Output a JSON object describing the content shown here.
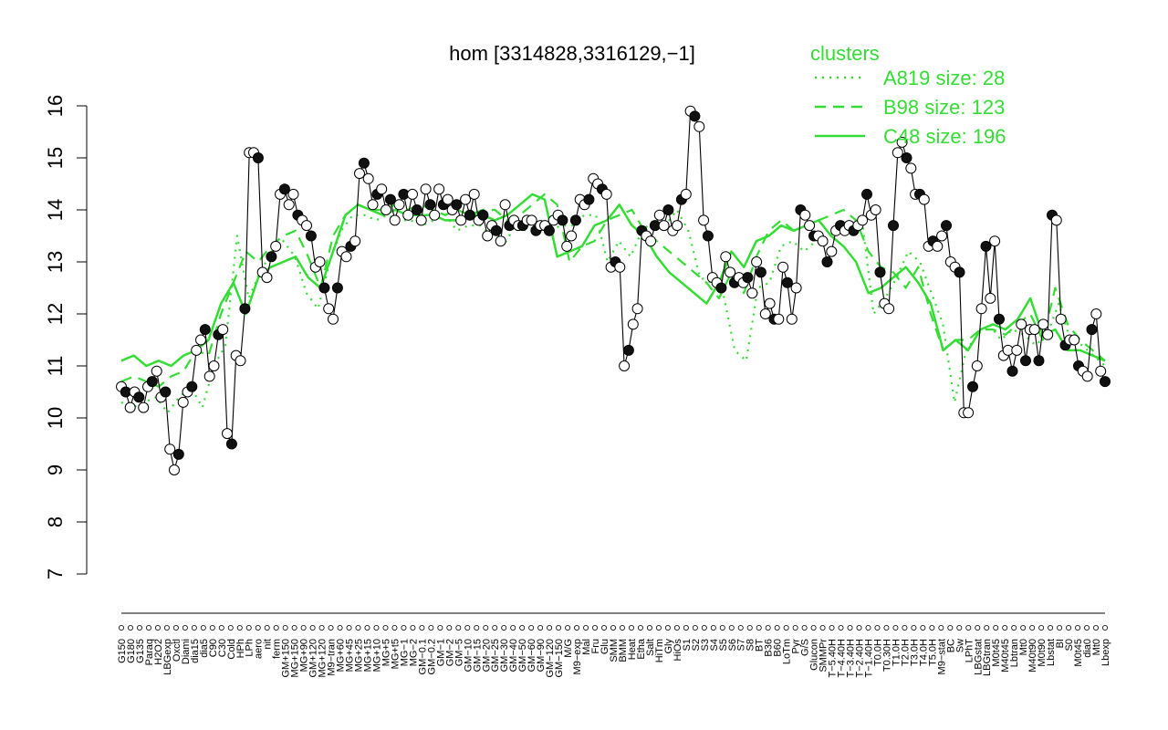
{
  "chart_data": {
    "type": "line",
    "title": "hom [3314828,3316129,−1]",
    "xlabel": "",
    "ylabel": "",
    "ylim": [
      7,
      16
    ],
    "yticks": [
      7,
      8,
      9,
      10,
      11,
      12,
      13,
      14,
      15,
      16
    ],
    "grid": false,
    "x_tick_labels": [
      "G150",
      "G180",
      "G135",
      "Paraq",
      "H2O2",
      "LBGexp",
      "Oxctl",
      "Diami",
      "dia15",
      "dia5",
      "C90",
      "C30",
      "Cold",
      "HPh",
      "LPh",
      "aero",
      "nit",
      "ferm",
      "GM+150",
      "MG+150",
      "MG+90",
      "GM+120",
      "MG+120",
      "M9−tran",
      "MG+60",
      "MG+45",
      "MG+25",
      "MG+15",
      "MG+10",
      "MG+5",
      "MG+t5",
      "MG−1",
      "MG−2",
      "GM−0.1",
      "GM−0.2",
      "GM−1",
      "GM−2",
      "GM−5",
      "GM−10",
      "GM−15",
      "GM−20",
      "GM−25",
      "GM−30",
      "GM−40",
      "GM−50",
      "GM−60",
      "GM−90",
      "GM−120",
      "GM−150",
      "M/G",
      "M9−exp",
      "Mal",
      "Fru",
      "Glu",
      "SMM",
      "BMM",
      "Heat",
      "Etha",
      "Salt",
      "HiTm",
      "Gly",
      "HiOs",
      "S1",
      "S2",
      "S3",
      "S4",
      "S5",
      "S6",
      "S7",
      "S8",
      "BT",
      "B36",
      "B60",
      "LoTm",
      "Pyr",
      "G/S",
      "Glucon",
      "SMMPr",
      "T−5.40H",
      "T−4.40H",
      "T−3.40H",
      "T−2.40H",
      "T−1.40H",
      "T0.0H",
      "T0.30H",
      "T1.0H",
      "T2.0H",
      "T3.0H",
      "T4.0H",
      "T5.0H",
      "M9−stat",
      "BC",
      "Sw",
      "LPhT",
      "LBGstat",
      "LBGtran",
      "M0t45",
      "M40t45",
      "Lbtran",
      "Mt0",
      "M40t90",
      "M0t90",
      "Lbstat",
      "BI",
      "S0",
      "M0t45",
      "dia0",
      "Mt0",
      "Lbexp"
    ],
    "sample_points": [
      10.6,
      10.5,
      10.2,
      10.5,
      10.4,
      10.2,
      10.6,
      10.7,
      10.9,
      10.4,
      10.5,
      9.4,
      9.0,
      9.3,
      10.3,
      10.5,
      10.6,
      11.3,
      11.5,
      11.7,
      10.8,
      11.0,
      11.6,
      11.7,
      9.7,
      9.5,
      11.2,
      11.1,
      12.1,
      15.1,
      15.1,
      15.0,
      12.8,
      12.7,
      13.1,
      13.3,
      14.3,
      14.4,
      14.1,
      14.3,
      13.9,
      13.8,
      13.7,
      13.5,
      12.9,
      13.0,
      12.5,
      12.1,
      11.9,
      12.5,
      13.2,
      13.1,
      13.3,
      13.4,
      14.7,
      14.9,
      14.6,
      14.1,
      14.3,
      14.4,
      14.0,
      14.2,
      13.8,
      14.1,
      14.3,
      13.9,
      14.3,
      14.0,
      13.8,
      14.4,
      14.1,
      13.9,
      14.4,
      14.1,
      14.2,
      14.0,
      14.1,
      13.8,
      14.2,
      13.9,
      14.3,
      13.8,
      13.9,
      13.5,
      13.7,
      13.6,
      13.4,
      14.1,
      13.7,
      13.8,
      13.7,
      13.7,
      13.8,
      13.8,
      13.6,
      13.7,
      13.7,
      13.6,
      13.8,
      13.9,
      13.8,
      13.3,
      13.5,
      13.8,
      14.2,
      14.1,
      14.2,
      14.6,
      14.5,
      14.4,
      14.3,
      12.9,
      13.0,
      12.9,
      11.0,
      11.3,
      11.8,
      12.1,
      13.6,
      13.5,
      13.4,
      13.7,
      13.9,
      13.7,
      14.0,
      13.6,
      13.7,
      14.2,
      14.3,
      15.9,
      15.8,
      15.6,
      13.8,
      13.5,
      12.7,
      12.6,
      12.5,
      13.1,
      12.8,
      12.6,
      12.7,
      12.6,
      12.7,
      12.4,
      13.0,
      12.8,
      12.0,
      12.2,
      11.9,
      11.9,
      12.9,
      12.6,
      11.9,
      12.5,
      14.0,
      13.9,
      13.7,
      13.5,
      13.5,
      13.4,
      13.0,
      13.2,
      13.6,
      13.7,
      13.6,
      13.7,
      13.6,
      13.7,
      13.8,
      14.3,
      13.9,
      14.0,
      12.8,
      12.2,
      12.1,
      13.7,
      15.1,
      15.3,
      15.0,
      14.8,
      14.3,
      14.3,
      14.2,
      13.3,
      13.4,
      13.3,
      13.5,
      13.7,
      13.0,
      12.9,
      12.8,
      10.1,
      10.1,
      10.6,
      11.0,
      12.1,
      13.3,
      12.3,
      13.4,
      11.9,
      11.2,
      11.3,
      10.9,
      11.3,
      11.8,
      11.1,
      11.7,
      11.7,
      11.1,
      11.8,
      11.6,
      13.9,
      13.8,
      11.9,
      11.4,
      11.5,
      11.5,
      11.0,
      10.9,
      10.8,
      11.7,
      12.0,
      10.9,
      10.7
    ],
    "series": [
      {
        "name": "A819 size: 28",
        "style": "dotted",
        "color": "#33dd33",
        "values": [
          10.3,
          10.2,
          10.3,
          10.4,
          10.1,
          10.4,
          10.6,
          10.2,
          11.0,
          11.4,
          13.5,
          12.3,
          12.8,
          13.2,
          13.4,
          13.1,
          12.4,
          12.1,
          13.0,
          13.6,
          13.9,
          13.9,
          13.8,
          13.9,
          13.8,
          13.8,
          13.7,
          13.8,
          13.9,
          13.6,
          13.7,
          13.7,
          13.5,
          13.3,
          13.7,
          13.6,
          13.7,
          13.6,
          13.7,
          13.7,
          13.9,
          13.9,
          13.0,
          13.4,
          13.1,
          13.6,
          13.8,
          13.7,
          14.0,
          13.6,
          12.7,
          12.6,
          12.4,
          11.3,
          11.1,
          12.5,
          12.6,
          13.3,
          13.4,
          13.2,
          13.4,
          13.5,
          13.6,
          13.6,
          13.8,
          12.0,
          12.3,
          12.7,
          13.2,
          13.0,
          12.4,
          11.8,
          10.3,
          11.3,
          11.6,
          11.8,
          11.5,
          11.7,
          11.6,
          11.4,
          11.6,
          12.2,
          11.5,
          11.4,
          11.2,
          11.0
        ]
      },
      {
        "name": "B98 size: 123",
        "style": "dashed",
        "color": "#33dd33",
        "values": [
          10.7,
          10.8,
          10.7,
          10.6,
          10.8,
          10.9,
          11.3,
          11.2,
          12.0,
          12.6,
          13.2,
          13.0,
          13.3,
          13.5,
          13.6,
          13.1,
          12.5,
          13.5,
          13.9,
          14.1,
          14.0,
          14.0,
          14.1,
          14.0,
          14.1,
          14.0,
          13.9,
          14.0,
          13.9,
          14.0,
          14.0,
          13.8,
          13.9,
          14.1,
          14.3,
          14.1,
          13.0,
          13.3,
          13.4,
          13.8,
          13.9,
          14.0,
          13.6,
          13.4,
          13.2,
          13.0,
          12.8,
          12.6,
          12.3,
          12.8,
          12.4,
          13.1,
          13.6,
          13.8,
          13.6,
          13.7,
          13.8,
          13.9,
          14.0,
          13.8,
          13.2,
          12.9,
          12.8,
          12.5,
          12.9,
          12.0,
          11.3,
          11.5,
          11.5,
          11.7,
          11.7,
          11.6,
          11.8,
          12.0,
          11.5,
          12.5,
          11.8,
          11.5,
          11.3,
          11.1
        ]
      },
      {
        "name": "C48 size: 196",
        "style": "solid",
        "color": "#33dd33",
        "values": [
          11.1,
          11.2,
          11.0,
          11.1,
          11.0,
          11.2,
          11.3,
          11.5,
          12.2,
          12.6,
          12.0,
          12.7,
          12.9,
          13.0,
          13.1,
          12.7,
          12.5,
          13.2,
          13.9,
          14.1,
          14.0,
          13.9,
          14.0,
          13.9,
          13.9,
          13.9,
          13.8,
          13.8,
          13.9,
          13.9,
          13.8,
          13.9,
          14.1,
          14.3,
          14.2,
          13.1,
          13.2,
          13.3,
          13.7,
          13.8,
          14.1,
          13.7,
          13.5,
          13.1,
          12.8,
          12.6,
          12.4,
          12.2,
          12.6,
          13.2,
          12.9,
          13.4,
          13.5,
          13.7,
          13.6,
          13.7,
          13.8,
          13.5,
          13.3,
          13.0,
          12.4,
          12.5,
          12.7,
          12.9,
          12.6,
          12.2,
          11.3,
          11.5,
          11.3,
          11.7,
          11.8,
          11.7,
          11.9,
          12.3,
          11.6,
          11.7,
          11.3,
          11.3,
          11.2,
          11.1
        ]
      }
    ],
    "legend": {
      "title": "clusters",
      "position": "top-right"
    }
  }
}
